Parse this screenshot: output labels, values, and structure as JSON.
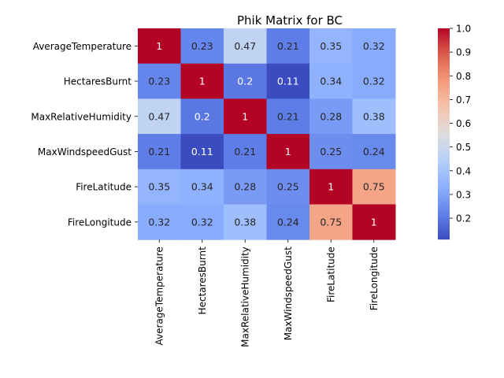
{
  "chart_data": {
    "type": "heatmap",
    "title": "Phik Matrix for BC",
    "xlabel": "",
    "ylabel": "",
    "row_labels": [
      "AverageTemperature",
      "HectaresBurnt",
      "MaxRelativeHumidity",
      "MaxWindspeedGust",
      "FireLatitude",
      "FireLongitude"
    ],
    "col_labels": [
      "AverageTemperature",
      "HectaresBurnt",
      "MaxRelativeHumidity",
      "MaxWindspeedGust",
      "FireLatitude",
      "FireLongitude"
    ],
    "values": [
      [
        1,
        0.23,
        0.47,
        0.21,
        0.35,
        0.32
      ],
      [
        0.23,
        1,
        0.2,
        0.11,
        0.34,
        0.32
      ],
      [
        0.47,
        0.2,
        1,
        0.21,
        0.28,
        0.38
      ],
      [
        0.21,
        0.11,
        0.21,
        1,
        0.25,
        0.24
      ],
      [
        0.35,
        0.34,
        0.28,
        0.25,
        1,
        0.75
      ],
      [
        0.32,
        0.32,
        0.38,
        0.24,
        0.75,
        1
      ]
    ],
    "cell_labels": [
      [
        "1",
        "0.23",
        "0.47",
        "0.21",
        "0.35",
        "0.32"
      ],
      [
        "0.23",
        "1",
        "0.2",
        "0.11",
        "0.34",
        "0.32"
      ],
      [
        "0.47",
        "0.2",
        "1",
        "0.21",
        "0.28",
        "0.38"
      ],
      [
        "0.21",
        "0.11",
        "0.21",
        "1",
        "0.25",
        "0.24"
      ],
      [
        "0.35",
        "0.34",
        "0.28",
        "0.25",
        "1",
        "0.75"
      ],
      [
        "0.32",
        "0.32",
        "0.38",
        "0.24",
        "0.75",
        "1"
      ]
    ],
    "colormap": "coolwarm",
    "colorbar": {
      "range": [
        0.11,
        1.0
      ],
      "ticks": [
        0.2,
        0.3,
        0.4,
        0.5,
        0.6,
        0.7,
        0.8,
        0.9,
        1.0
      ],
      "tick_labels": [
        "0.2",
        "0.3",
        "0.4",
        "0.5",
        "0.6",
        "0.7",
        "0.8",
        "0.9",
        "1.0"
      ],
      "placement": "right"
    },
    "grid": false
  }
}
